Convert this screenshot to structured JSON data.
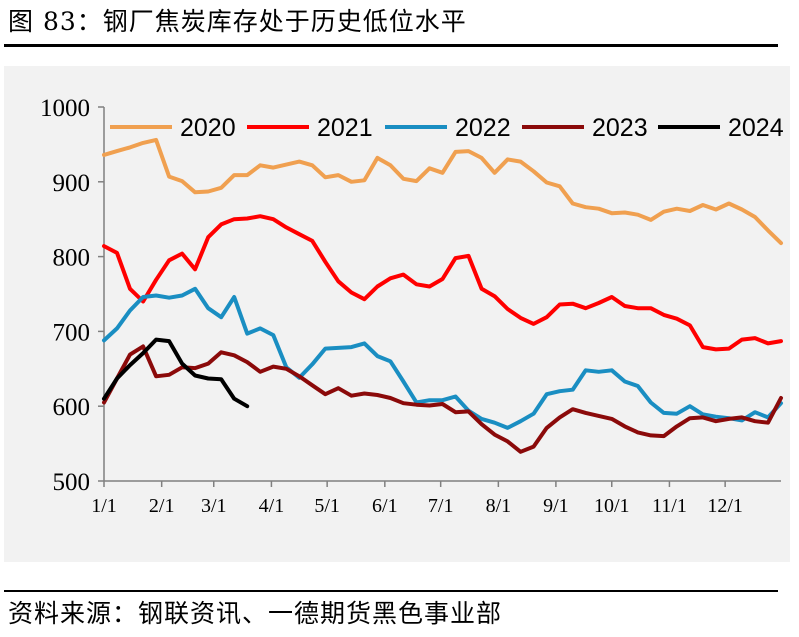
{
  "header": {
    "title": "图 83：钢厂焦炭库存处于历史低位水平"
  },
  "footer": {
    "source": "资料来源：钢联资讯、一德期货黑色事业部"
  },
  "chart_data": {
    "type": "line",
    "title": "钢厂焦炭库存处于历史低位水平",
    "xlabel": "",
    "ylabel": "",
    "ylim": [
      500,
      1000
    ],
    "yticks": [
      500,
      600,
      700,
      800,
      900,
      1000
    ],
    "xlim": [
      1,
      53
    ],
    "x_tick_labels": [
      {
        "label": "1/1",
        "week": 1
      },
      {
        "label": "2/1",
        "week": 5.43
      },
      {
        "label": "3/1",
        "week": 9.43
      },
      {
        "label": "4/1",
        "week": 13.86
      },
      {
        "label": "5/1",
        "week": 18.14
      },
      {
        "label": "6/1",
        "week": 22.57
      },
      {
        "label": "7/1",
        "week": 26.86
      },
      {
        "label": "8/1",
        "week": 31.29
      },
      {
        "label": "9/1",
        "week": 35.71
      },
      {
        "label": "10/1",
        "week": 40
      },
      {
        "label": "11/1",
        "week": 44.43
      },
      {
        "label": "12/1",
        "week": 48.71
      }
    ],
    "legend": "top",
    "series": [
      {
        "name": "2020",
        "color": "#f0a050",
        "values": [
          936,
          941,
          946,
          952,
          956,
          907,
          901,
          886,
          887,
          892,
          909,
          909,
          922,
          919,
          923,
          927,
          922,
          906,
          909,
          900,
          902,
          932,
          922,
          904,
          901,
          918,
          912,
          940,
          941,
          932,
          912,
          930,
          927,
          914,
          899,
          894,
          871,
          866,
          864,
          858,
          859,
          856,
          849,
          860,
          864,
          861,
          869,
          863,
          871,
          863,
          853,
          835,
          818
        ]
      },
      {
        "name": "2021",
        "color": "#ff0000",
        "values": [
          814,
          805,
          757,
          740,
          769,
          795,
          804,
          783,
          826,
          843,
          850,
          851,
          854,
          850,
          839,
          830,
          821,
          793,
          767,
          752,
          743,
          760,
          771,
          776,
          763,
          760,
          770,
          798,
          801,
          757,
          747,
          730,
          718,
          710,
          719,
          736,
          737,
          731,
          738,
          746,
          734,
          731,
          731,
          722,
          717,
          708,
          679,
          676,
          677,
          689,
          691,
          684,
          687
        ]
      },
      {
        "name": "2022",
        "color": "#1a8ec2",
        "values": [
          688,
          704,
          728,
          746,
          748,
          745,
          748,
          757,
          731,
          719,
          746,
          697,
          704,
          695,
          652,
          638,
          656,
          677,
          678,
          679,
          684,
          667,
          660,
          633,
          605,
          608,
          608,
          613,
          594,
          583,
          578,
          571,
          580,
          590,
          616,
          620,
          622,
          648,
          646,
          648,
          633,
          627,
          605,
          591,
          590,
          600,
          589,
          586,
          584,
          581,
          592,
          585,
          604
        ]
      },
      {
        "name": "2023",
        "color": "#8b0a0a",
        "values": [
          605,
          637,
          669,
          680,
          640,
          642,
          652,
          651,
          657,
          672,
          668,
          659,
          646,
          653,
          650,
          640,
          628,
          616,
          624,
          614,
          617,
          615,
          611,
          604,
          602,
          601,
          603,
          592,
          593,
          576,
          562,
          553,
          539,
          546,
          571,
          585,
          596,
          591,
          587,
          583,
          573,
          565,
          561,
          560,
          573,
          584,
          585,
          580,
          583,
          585,
          580,
          578,
          611
        ]
      },
      {
        "name": "2024",
        "color": "#000000",
        "values": [
          610,
          637,
          655,
          671,
          689,
          687,
          657,
          641,
          637,
          636,
          610,
          600
        ]
      }
    ]
  }
}
